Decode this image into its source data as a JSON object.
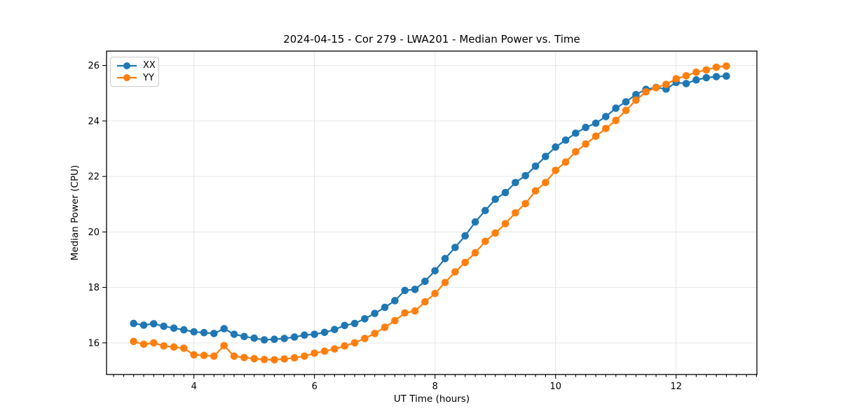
{
  "chart_data": {
    "type": "line",
    "title": "2024-04-15 - Cor 279 - LWA201 - Median Power vs. Time",
    "xlabel": "UT Time (hours)",
    "ylabel": "Median Power (CPU)",
    "xlim": [
      2.55,
      13.34
    ],
    "ylim": [
      14.86,
      26.52
    ],
    "x_ticks": [
      4,
      6,
      8,
      10,
      12
    ],
    "y_ticks": [
      16,
      18,
      20,
      22,
      24,
      26
    ],
    "x_minor_tick_step": 0.16667,
    "grid": true,
    "grid_color": "#e5e5e5",
    "legend_position": "upper-left",
    "marker": "circle",
    "x": [
      3.0,
      3.167,
      3.333,
      3.5,
      3.667,
      3.833,
      4.0,
      4.167,
      4.333,
      4.5,
      4.667,
      4.833,
      5.0,
      5.167,
      5.333,
      5.5,
      5.667,
      5.833,
      6.0,
      6.167,
      6.333,
      6.5,
      6.667,
      6.833,
      7.0,
      7.167,
      7.333,
      7.5,
      7.667,
      7.833,
      8.0,
      8.167,
      8.333,
      8.5,
      8.667,
      8.833,
      9.0,
      9.167,
      9.333,
      9.5,
      9.667,
      9.833,
      10.0,
      10.167,
      10.333,
      10.5,
      10.667,
      10.833,
      11.0,
      11.167,
      11.333,
      11.5,
      11.667,
      11.833,
      12.0,
      12.167,
      12.333,
      12.5,
      12.667,
      12.833
    ],
    "series": [
      {
        "name": "XX",
        "color": "#1f77b4",
        "values": [
          16.7,
          16.64,
          16.69,
          16.6,
          16.53,
          16.47,
          16.4,
          16.37,
          16.34,
          16.51,
          16.31,
          16.23,
          16.17,
          16.11,
          16.13,
          16.16,
          16.21,
          16.28,
          16.31,
          16.38,
          16.48,
          16.63,
          16.7,
          16.87,
          17.06,
          17.28,
          17.52,
          17.89,
          17.93,
          18.22,
          18.6,
          19.04,
          19.44,
          19.86,
          20.36,
          20.77,
          21.18,
          21.42,
          21.78,
          22.03,
          22.37,
          22.72,
          23.06,
          23.31,
          23.56,
          23.77,
          23.92,
          24.16,
          24.46,
          24.69,
          24.95,
          25.14,
          25.21,
          25.15,
          25.39,
          25.35,
          25.48,
          25.56,
          25.6,
          25.62
        ]
      },
      {
        "name": "YY",
        "color": "#ff7f0e",
        "values": [
          16.05,
          15.95,
          16.0,
          15.89,
          15.85,
          15.81,
          15.57,
          15.55,
          15.52,
          15.9,
          15.52,
          15.47,
          15.43,
          15.4,
          15.39,
          15.42,
          15.46,
          15.52,
          15.63,
          15.7,
          15.78,
          15.89,
          16.0,
          16.16,
          16.34,
          16.56,
          16.8,
          17.08,
          17.15,
          17.48,
          17.78,
          18.18,
          18.56,
          18.9,
          19.25,
          19.66,
          19.96,
          20.3,
          20.69,
          21.02,
          21.48,
          21.78,
          22.22,
          22.52,
          22.89,
          23.17,
          23.45,
          23.73,
          24.02,
          24.38,
          24.75,
          25.05,
          25.2,
          25.32,
          25.52,
          25.63,
          25.76,
          25.84,
          25.94,
          25.98
        ]
      }
    ]
  }
}
